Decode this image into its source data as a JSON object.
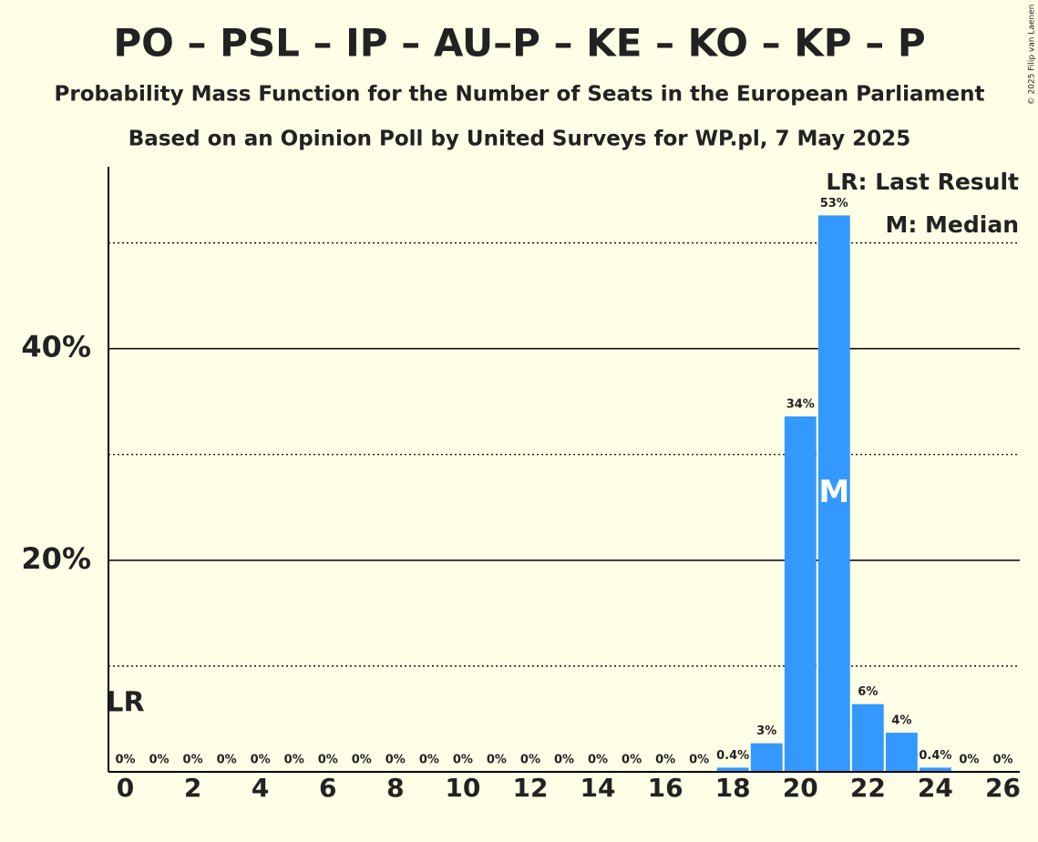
{
  "chart_data": {
    "type": "bar",
    "title": "PO – PSL – IP – AU–P – KE – KO – KP – P",
    "subtitle": "Probability Mass Function for the Number of Seats in the European Parliament",
    "subtitle2": "Based on an Opinion Poll by United Surveys for WP.pl, 7 May 2025",
    "copyright": "© 2025 Filip van Laenen",
    "x": [
      0,
      1,
      2,
      3,
      4,
      5,
      6,
      7,
      8,
      9,
      10,
      11,
      12,
      13,
      14,
      15,
      16,
      17,
      18,
      19,
      20,
      21,
      22,
      23,
      24,
      25,
      26
    ],
    "values": [
      0,
      0,
      0,
      0,
      0,
      0,
      0,
      0,
      0,
      0,
      0,
      0,
      0,
      0,
      0,
      0,
      0,
      0,
      0.4,
      2.7,
      33.6,
      52.6,
      6.4,
      3.7,
      0.4,
      0,
      0
    ],
    "value_labels": [
      "0%",
      "0%",
      "0%",
      "0%",
      "0%",
      "0%",
      "0%",
      "0%",
      "0%",
      "0%",
      "0%",
      "0%",
      "0%",
      "0%",
      "0%",
      "0%",
      "0%",
      "0%",
      "0.4%",
      "3%",
      "34%",
      "53%",
      "6%",
      "4%",
      "0.4%",
      "0%",
      "0%"
    ],
    "color": "#3399ff",
    "xlim": [
      -0.5,
      26.5
    ],
    "xticks": [
      0,
      2,
      4,
      6,
      8,
      10,
      12,
      14,
      16,
      18,
      20,
      22,
      24,
      26
    ],
    "ylim": [
      0,
      57.2
    ],
    "yticks": [
      {
        "value": 20,
        "label": "20%"
      },
      {
        "value": 40,
        "label": "40%"
      }
    ],
    "minor_yticks": [
      10,
      30,
      50
    ],
    "grid": true,
    "annotations": [
      {
        "label": "LR",
        "x": 0
      },
      {
        "label": "M",
        "x": 21
      }
    ],
    "legend": [
      "LR: Last Result",
      "M: Median"
    ]
  }
}
